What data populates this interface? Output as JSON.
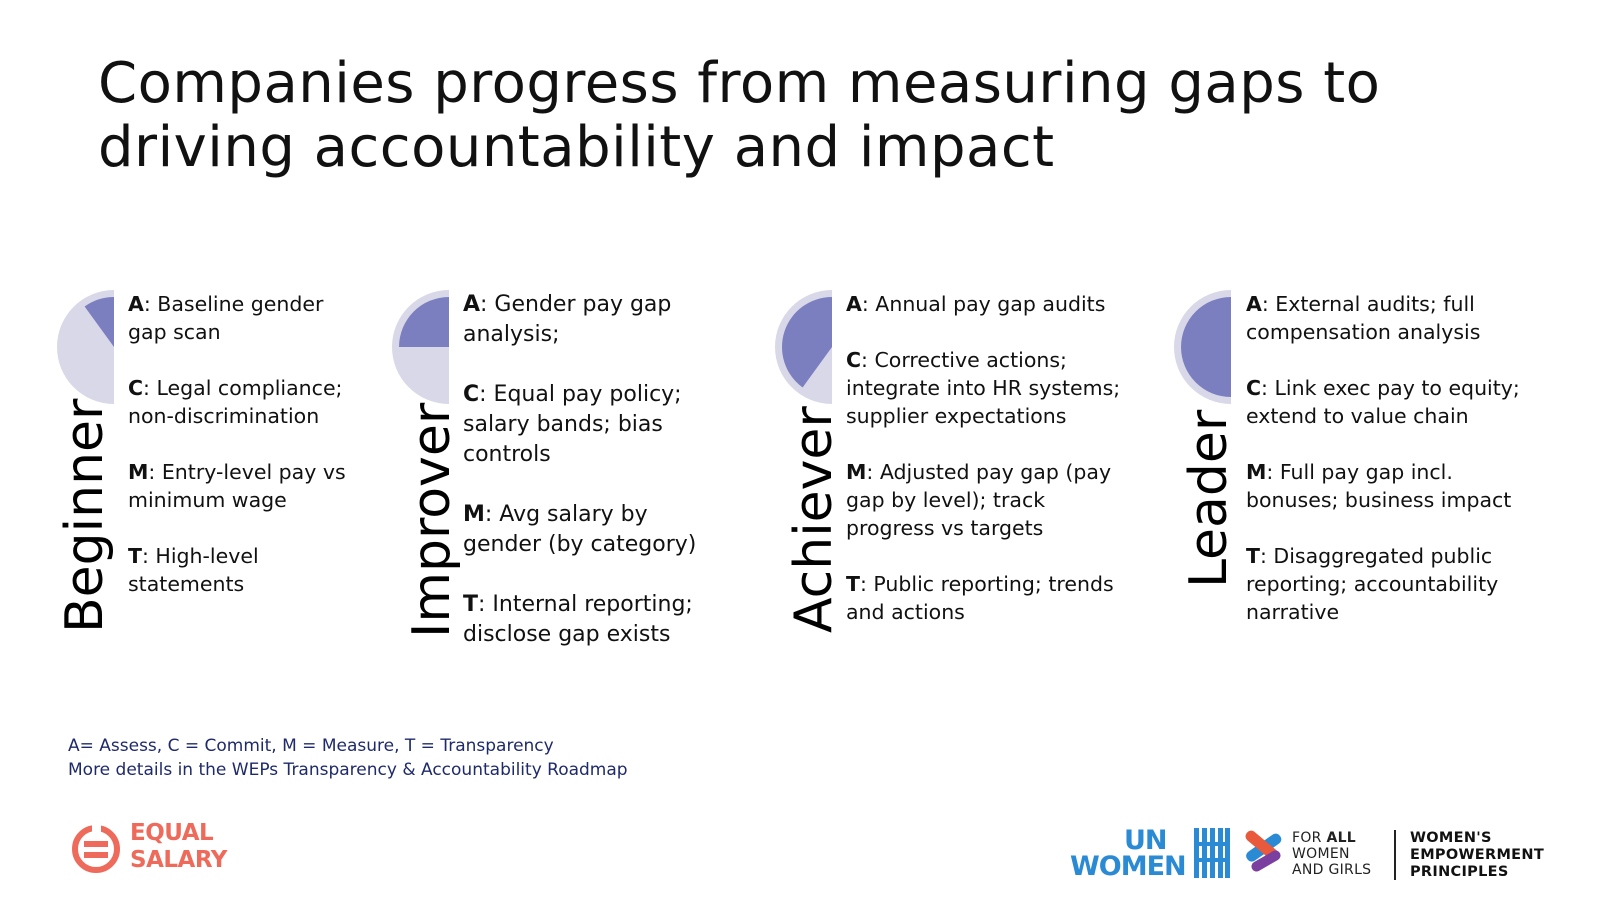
{
  "title": {
    "line1": "Companies progress from measuring gaps to",
    "line2": "driving accountability and impact"
  },
  "stages": [
    {
      "name": "Beginner",
      "progress_fraction": 0.1,
      "items": [
        {
          "key": "A",
          "text": ": Baseline gender gap scan"
        },
        {
          "key": "C",
          "text": ": Legal compliance; non-discrimination"
        },
        {
          "key": "M",
          "text": ": Entry-level pay vs minimum wage"
        },
        {
          "key": "T",
          "text": ": High-level statements"
        }
      ]
    },
    {
      "name": "Improver",
      "progress_fraction": 0.25,
      "items": [
        {
          "key": "A",
          "text": ": Gender pay gap analysis;"
        },
        {
          "key": "C",
          "text": ": Equal pay policy; salary bands; bias controls"
        },
        {
          "key": "M",
          "text": ": Avg salary by gender (by category)"
        },
        {
          "key": "T",
          "text": ": Internal reporting; disclose gap exists"
        }
      ]
    },
    {
      "name": "Achiever",
      "progress_fraction": 0.4,
      "items": [
        {
          "key": "A",
          "text": ": Annual pay gap audits"
        },
        {
          "key": "C",
          "text": ": Corrective actions; integrate into HR systems; supplier expectations"
        },
        {
          "key": "M",
          "text": ": Adjusted pay gap (pay gap by level); track progress vs targets"
        },
        {
          "key": "T",
          "text": ": Public reporting; trends and actions"
        }
      ]
    },
    {
      "name": "Leader",
      "progress_fraction": 0.5,
      "items": [
        {
          "key": "A",
          "text": ": External audits; full compensation analysis"
        },
        {
          "key": "C",
          "text": ": Link exec pay to equity; extend to value chain"
        },
        {
          "key": "M",
          "text": ": Full pay gap incl. bonuses; business impact"
        },
        {
          "key": "T",
          "text": ": Disaggregated public reporting; accountability narrative"
        }
      ]
    }
  ],
  "footnote": {
    "line1": "A= Assess, C = Commit, M = Measure, T = Transparency",
    "line2": "More details in the WEPs Transparency & Accountability Roadmap"
  },
  "logos": {
    "equal_salary": {
      "line1": "EQUAL",
      "line2": "SALARY"
    },
    "un_women": {
      "line1": "UN",
      "line2": "WOMEN"
    },
    "for_all": {
      "prefix": "FOR ",
      "bold": "ALL",
      "line2": "WOMEN",
      "line3": "AND GIRLS"
    },
    "weps": {
      "line1": "WOMEN'S",
      "line2": "EMPOWERMENT",
      "line3": "PRINCIPLES"
    }
  },
  "colors": {
    "pie_light": "#d8d8e8",
    "pie_fill": "#7b7fc0",
    "footnote": "#1f2a6b",
    "equal_salary": "#ee6b5b",
    "un_women": "#2a8ad4"
  }
}
